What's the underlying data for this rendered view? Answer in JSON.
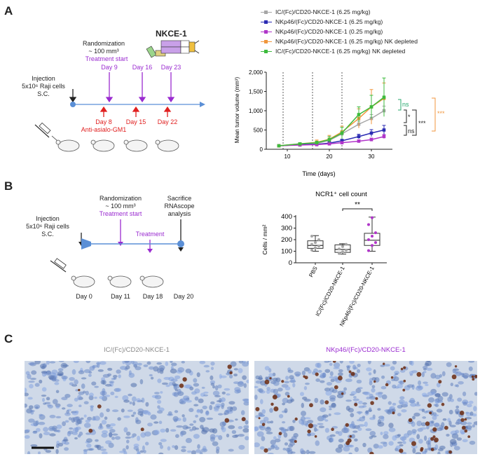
{
  "panels": {
    "a": "A",
    "b": "B",
    "c": "C"
  },
  "colors": {
    "gray": "#a6a6a6",
    "blue": "#2b2bb3",
    "magenta": "#b035c9",
    "orange": "#f0963c",
    "green": "#3dbb3d",
    "purple": "#9a2bd0",
    "red": "#e02020",
    "teal": "#28a86e",
    "black": "#222222",
    "timeline": "#5b8fd6"
  },
  "panel_a": {
    "construct_label": "NKCE-1",
    "randomization": "Randomization",
    "volume": "~ 100 mm³",
    "treatment_start": "Treatment start",
    "injection": [
      "Injection",
      "5x10⁶ Raji cells",
      "S.C."
    ],
    "treatment_days": [
      "Day 9",
      "Day 16",
      "Day 23"
    ],
    "depletion_days": [
      "Day 8",
      "Day 15",
      "Day 22"
    ],
    "depletion_label": "Anti-asialo-GM1"
  },
  "legend": [
    {
      "label": "IC/(Fc)/CD20-NKCE-1 (6.25 mg/kg)",
      "color": "#a6a6a6"
    },
    {
      "label": "NKp46/(Fc)/CD20-NKCE-1 (6.25 mg/kg)",
      "color": "#2b2bb3"
    },
    {
      "label": "NKp46/(Fc)/CD20-NKCE-1 (0.25 mg/kg)",
      "color": "#b035c9"
    },
    {
      "label": "NKp46/(Fc)/CD20-NKCE-1 (6.25 mg/kg) NK depleted",
      "color": "#f0963c"
    },
    {
      "label": "IC/(Fc)/CD20-NKCE-1 (6.25 mg/kg) NK depleted",
      "color": "#3dbb3d"
    }
  ],
  "chart_data": [
    {
      "type": "line",
      "xlabel": "Time (days)",
      "ylabel": "Mean tumor volume (mm³)",
      "xlim": [
        5,
        35
      ],
      "ylim": [
        0,
        2000
      ],
      "xticks": [
        "10",
        "20",
        "30"
      ],
      "yticks": [
        "0",
        "500",
        "1,000",
        "1,500",
        "2,000"
      ],
      "treatment_lines_x": [
        9,
        16,
        23
      ],
      "x": [
        8,
        13,
        17,
        20,
        23,
        27,
        30,
        33
      ],
      "series": [
        {
          "name": "IC/(Fc)/CD20-NKCE-1 (6.25 mg/kg)",
          "color": "#a6a6a6",
          "values": [
            90,
            120,
            150,
            230,
            400,
            650,
            800,
            1000
          ],
          "err": [
            10,
            20,
            30,
            40,
            60,
            80,
            100,
            120
          ]
        },
        {
          "name": "NKp46/(Fc)/CD20-NKCE-1 (6.25 mg/kg)",
          "color": "#2b2bb3",
          "values": [
            90,
            120,
            130,
            160,
            220,
            330,
            420,
            500
          ],
          "err": [
            10,
            15,
            20,
            30,
            40,
            60,
            90,
            120
          ]
        },
        {
          "name": "NKp46/(Fc)/CD20-NKCE-1 (0.25 mg/kg)",
          "color": "#b035c9",
          "values": [
            90,
            110,
            120,
            140,
            170,
            210,
            250,
            330
          ],
          "err": [
            10,
            15,
            20,
            25,
            30,
            35,
            40,
            50
          ]
        },
        {
          "name": "NKp46/(Fc)/CD20-NKCE-1 (6.25 mg/kg) NK depleted",
          "color": "#f0963c",
          "values": [
            90,
            140,
            180,
            260,
            450,
            800,
            1100,
            1320
          ],
          "err": [
            10,
            30,
            60,
            100,
            150,
            250,
            450,
            400
          ]
        },
        {
          "name": "IC/(Fc)/CD20-NKCE-1 (6.25 mg/kg) NK depleted",
          "color": "#3dbb3d",
          "values": [
            90,
            140,
            170,
            250,
            420,
            900,
            1100,
            1350
          ],
          "err": [
            10,
            25,
            40,
            80,
            150,
            200,
            300,
            500
          ]
        }
      ],
      "significance": [
        "ns",
        "*",
        "***",
        "ns",
        "***"
      ]
    },
    {
      "type": "box",
      "title": "NCR1⁺ cell count",
      "ylabel": "Cells / mm²",
      "ylim": [
        0,
        400
      ],
      "yticks": [
        "0",
        "100",
        "200",
        "300",
        "400"
      ],
      "categories": [
        "PBS",
        "IC/(Fc)/CD20-NKCE-1",
        "NKp46/(Fc)/CD20-NKCE-1"
      ],
      "boxes": [
        {
          "min": 100,
          "q1": 125,
          "median": 150,
          "q3": 190,
          "max": 235,
          "points": [
            110,
            130,
            145,
            160,
            175,
            200,
            230
          ],
          "color": "#a6a6a6"
        },
        {
          "min": 75,
          "q1": 90,
          "median": 115,
          "q3": 155,
          "max": 165,
          "points": [
            80,
            95,
            110,
            120,
            140,
            160
          ],
          "color": "#a6a6a6"
        },
        {
          "min": 100,
          "q1": 150,
          "median": 195,
          "q3": 255,
          "max": 395,
          "points": [
            105,
            150,
            175,
            200,
            230,
            260,
            330,
            390
          ],
          "color": "#b035c9"
        }
      ],
      "significance": "**"
    }
  ],
  "panel_b": {
    "injection": [
      "Injection",
      "5x10⁶ Raji cells",
      "S.C."
    ],
    "randomization": "Randomization",
    "volume": "~ 100 mm³",
    "treatment_start": "Treatment start",
    "treatment": "Treatment",
    "sacrifice": [
      "Sacrifice",
      "RNAscope",
      "analysis"
    ],
    "days": [
      "Day 0",
      "Day 11",
      "Day 18",
      "Day 20"
    ]
  },
  "panel_c": {
    "left_title": "IC/(Fc)/CD20-NKCE-1",
    "right_title": "NKp46/(Fc)/CD20-NKCE-1"
  }
}
